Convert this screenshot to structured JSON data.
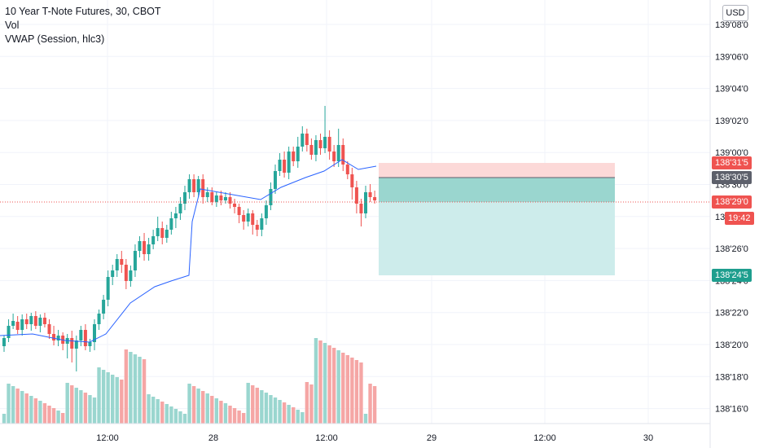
{
  "legend": {
    "symbol": "10 Year T-Note Futures, 30, CBOT",
    "vol": "Vol",
    "vwap": "VWAP (Session, hlc3)"
  },
  "currency": "USD",
  "colors": {
    "up": "#26a69a",
    "down": "#ef5350",
    "vol_up": "#9ad6cf",
    "vol_down": "#f5a6a5",
    "vwap": "#2962ff",
    "profit_zone": "#cdeceb",
    "loss_zone": "#fcd9d8",
    "grid": "#f0f3fa",
    "axis_text": "#131722",
    "tag_grey": "#5d606b"
  },
  "price_tags": {
    "stop": {
      "text": "138'31'5",
      "color": "#ef5350"
    },
    "entry": {
      "text": "138'30'5",
      "color": "#5d606b"
    },
    "last": {
      "text": "138'29'0",
      "color": "#ef5350"
    },
    "countdown": {
      "text": "19:42",
      "color": "#ef5350"
    },
    "target": {
      "text": "138'24'5",
      "color": "#1e9e8e"
    }
  },
  "chart_data": {
    "type": "candlestick",
    "y_ticks": [
      "139'08'0",
      "139'06'0",
      "139'04'0",
      "139'02'0",
      "139'00'0",
      "138'30'0",
      "138'28'0",
      "138'26'0",
      "138'24'0",
      "138'22'0",
      "138'20'0",
      "138'18'0",
      "138'16'0"
    ],
    "x_ticks": [
      "12:00",
      "28",
      "12:00",
      "29",
      "12:00",
      "30"
    ],
    "last_price": "138'29'0",
    "position": {
      "stop": "138'31'5",
      "entry": "138'30'5",
      "target": "138'24'5"
    }
  }
}
